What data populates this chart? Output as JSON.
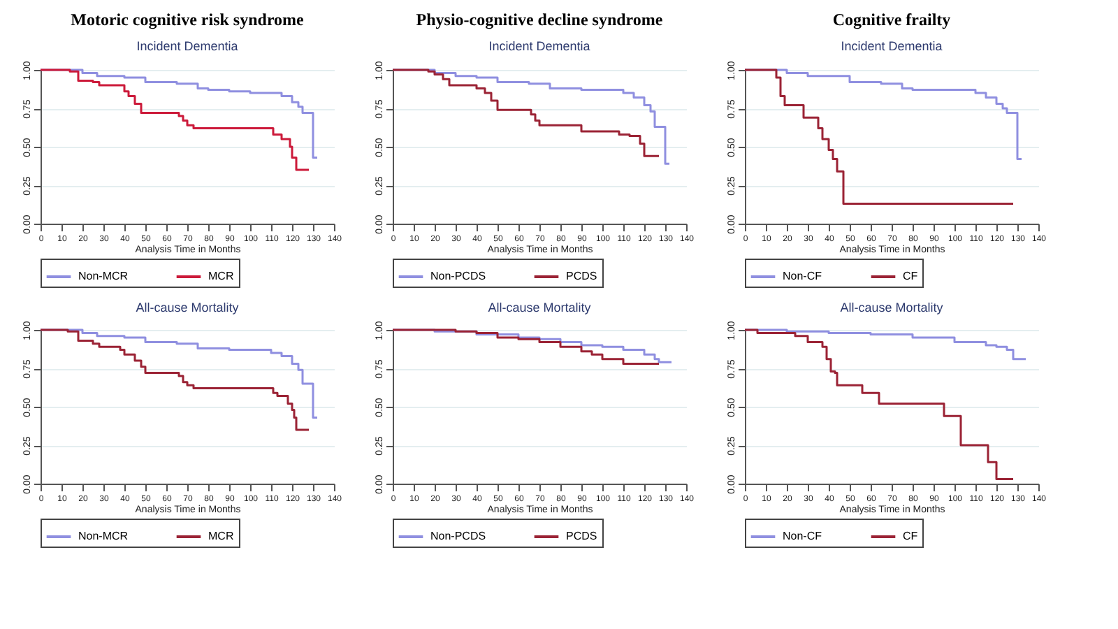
{
  "chart_data": [
    {
      "type": "step",
      "title": "Motoric cognitive risk syndrome",
      "subtitle": "Incident Dementia",
      "xlabel": "Analysis Time in Months",
      "xlim": [
        0,
        140
      ],
      "xticks": [
        0,
        10,
        20,
        30,
        40,
        50,
        60,
        70,
        80,
        90,
        100,
        110,
        120,
        130,
        140
      ],
      "ylim": [
        0,
        1
      ],
      "yticks": [
        {
          "value": 0,
          "label": "0.00"
        },
        {
          "value": 0.25,
          "label": "0.25"
        },
        {
          "value": 0.5,
          "label": "0.50"
        },
        {
          "value": 0.75,
          "label": "0.75"
        },
        {
          "value": 1,
          "label": "1.00"
        }
      ],
      "grid": "y",
      "legend": "bottom",
      "series": [
        {
          "name": "Non-MCR",
          "color": "#8f8fe0",
          "x": [
            0,
            15,
            20,
            27,
            40,
            50,
            65,
            75,
            80,
            90,
            100,
            110,
            115,
            120,
            123,
            125,
            130,
            132
          ],
          "values": [
            1.0,
            1.0,
            0.98,
            0.96,
            0.95,
            0.92,
            0.91,
            0.88,
            0.87,
            0.86,
            0.85,
            0.85,
            0.83,
            0.79,
            0.76,
            0.72,
            0.43,
            0.43
          ]
        },
        {
          "name": "MCR",
          "color": "#cc1a3a",
          "x": [
            0,
            14,
            18,
            25,
            28,
            40,
            42,
            45,
            48,
            66,
            68,
            70,
            73,
            111,
            115,
            119,
            120,
            122,
            128
          ],
          "values": [
            1.0,
            0.99,
            0.93,
            0.92,
            0.9,
            0.86,
            0.83,
            0.78,
            0.72,
            0.7,
            0.67,
            0.64,
            0.62,
            0.58,
            0.55,
            0.5,
            0.43,
            0.35,
            0.35
          ]
        }
      ]
    },
    {
      "type": "step",
      "title": "Physio-cognitive decline syndrome",
      "subtitle": "Incident Dementia",
      "xlabel": "Analysis Time in Months",
      "xlim": [
        0,
        140
      ],
      "xticks": [
        0,
        10,
        20,
        30,
        40,
        50,
        60,
        70,
        80,
        90,
        100,
        110,
        120,
        130,
        140
      ],
      "ylim": [
        0,
        1
      ],
      "yticks": [
        {
          "value": 0,
          "label": "0.00"
        },
        {
          "value": 0.25,
          "label": "0.25"
        },
        {
          "value": 0.5,
          "label": "0.50"
        },
        {
          "value": 0.75,
          "label": "0.75"
        },
        {
          "value": 1,
          "label": "1.00"
        }
      ],
      "grid": "y",
      "legend": "bottom",
      "series": [
        {
          "name": "Non-PCDS",
          "color": "#8f8fe0",
          "x": [
            0,
            15,
            20,
            30,
            40,
            50,
            65,
            75,
            90,
            110,
            115,
            120,
            123,
            125,
            130,
            132
          ],
          "values": [
            1.0,
            1.0,
            0.98,
            0.96,
            0.95,
            0.92,
            0.91,
            0.88,
            0.87,
            0.85,
            0.82,
            0.77,
            0.73,
            0.63,
            0.39,
            0.39
          ]
        },
        {
          "name": "PCDS",
          "color": "#9b2335",
          "x": [
            0,
            17,
            20,
            24,
            27,
            40,
            44,
            47,
            50,
            66,
            68,
            70,
            90,
            108,
            113,
            118,
            120,
            127
          ],
          "values": [
            1.0,
            0.99,
            0.97,
            0.94,
            0.9,
            0.88,
            0.85,
            0.8,
            0.74,
            0.71,
            0.67,
            0.64,
            0.6,
            0.58,
            0.57,
            0.52,
            0.44,
            0.44
          ]
        }
      ]
    },
    {
      "type": "step",
      "title": "Cognitive frailty",
      "subtitle": "Incident Dementia",
      "xlabel": "Analysis Time in Months",
      "xlim": [
        0,
        140
      ],
      "xticks": [
        0,
        10,
        20,
        30,
        40,
        50,
        60,
        70,
        80,
        90,
        100,
        110,
        120,
        130,
        140
      ],
      "ylim": [
        0,
        1
      ],
      "yticks": [
        {
          "value": 0,
          "label": "0.00"
        },
        {
          "value": 0.25,
          "label": "0.25"
        },
        {
          "value": 0.5,
          "label": "0.50"
        },
        {
          "value": 0.75,
          "label": "0.75"
        },
        {
          "value": 1,
          "label": "1.00"
        }
      ],
      "grid": "y",
      "legend": "bottom",
      "series": [
        {
          "name": "Non-CF",
          "color": "#8f8fe0",
          "x": [
            0,
            15,
            20,
            30,
            40,
            50,
            65,
            75,
            80,
            110,
            115,
            120,
            123,
            125,
            130,
            132
          ],
          "values": [
            1.0,
            1.0,
            0.98,
            0.96,
            0.96,
            0.92,
            0.91,
            0.88,
            0.87,
            0.85,
            0.82,
            0.78,
            0.75,
            0.72,
            0.42,
            0.42
          ]
        },
        {
          "name": "CF",
          "color": "#9b2335",
          "x": [
            0,
            15,
            17,
            19,
            28,
            35,
            37,
            40,
            42,
            44,
            47,
            128
          ],
          "values": [
            1.0,
            0.95,
            0.83,
            0.77,
            0.69,
            0.62,
            0.55,
            0.48,
            0.42,
            0.34,
            0.13,
            0.13
          ]
        }
      ]
    },
    {
      "type": "step",
      "title": "All-cause Mortality",
      "xlabel": "Analysis Time in Months",
      "xlim": [
        0,
        140
      ],
      "xticks": [
        0,
        10,
        20,
        30,
        40,
        50,
        60,
        70,
        80,
        90,
        100,
        110,
        120,
        130,
        140
      ],
      "ylim": [
        0,
        1
      ],
      "yticks": [
        {
          "value": 0,
          "label": "0.00"
        },
        {
          "value": 0.25,
          "label": "0.25"
        },
        {
          "value": 0.5,
          "label": "0.50"
        },
        {
          "value": 0.75,
          "label": "0.75"
        },
        {
          "value": 1,
          "label": "1.00"
        }
      ],
      "grid": "y",
      "legend": "bottom",
      "series": [
        {
          "name": "Non-MCR",
          "color": "#8f8fe0",
          "x": [
            0,
            15,
            20,
            27,
            40,
            50,
            65,
            75,
            90,
            110,
            115,
            120,
            123,
            125,
            130,
            132
          ],
          "values": [
            1.0,
            1.0,
            0.98,
            0.96,
            0.95,
            0.92,
            0.91,
            0.88,
            0.87,
            0.85,
            0.83,
            0.78,
            0.74,
            0.65,
            0.43,
            0.43
          ]
        },
        {
          "name": "MCR",
          "color": "#9b2335",
          "x": [
            0,
            13,
            18,
            25,
            28,
            38,
            40,
            45,
            48,
            50,
            66,
            68,
            70,
            73,
            111,
            113,
            118,
            120,
            121,
            122,
            128
          ],
          "values": [
            1.0,
            0.99,
            0.93,
            0.91,
            0.89,
            0.87,
            0.84,
            0.8,
            0.76,
            0.72,
            0.7,
            0.66,
            0.64,
            0.62,
            0.59,
            0.57,
            0.52,
            0.48,
            0.43,
            0.35,
            0.35
          ]
        }
      ]
    },
    {
      "type": "step",
      "title": "All-cause Mortality",
      "xlabel": "Analysis Time in Months",
      "xlim": [
        0,
        140
      ],
      "xticks": [
        0,
        10,
        20,
        30,
        40,
        50,
        60,
        70,
        80,
        90,
        100,
        110,
        120,
        130,
        140
      ],
      "ylim": [
        0,
        1
      ],
      "yticks": [
        {
          "value": 0,
          "label": "0.00"
        },
        {
          "value": 0.25,
          "label": "0.25"
        },
        {
          "value": 0.5,
          "label": "0.50"
        },
        {
          "value": 0.75,
          "label": "0.75"
        },
        {
          "value": 1,
          "label": "1.00"
        }
      ],
      "grid": "y",
      "legend": "bottom",
      "series": [
        {
          "name": "Non-PCDS",
          "color": "#8f8fe0",
          "x": [
            0,
            20,
            40,
            60,
            70,
            80,
            90,
            100,
            110,
            120,
            125,
            127,
            133
          ],
          "values": [
            1.0,
            0.99,
            0.97,
            0.95,
            0.94,
            0.92,
            0.9,
            0.89,
            0.87,
            0.84,
            0.81,
            0.79,
            0.79
          ]
        },
        {
          "name": "PCDS",
          "color": "#9b2335",
          "x": [
            0,
            30,
            40,
            50,
            60,
            70,
            80,
            90,
            95,
            100,
            110,
            127
          ],
          "values": [
            1.0,
            0.99,
            0.98,
            0.95,
            0.94,
            0.92,
            0.89,
            0.86,
            0.84,
            0.81,
            0.78,
            0.78
          ]
        }
      ]
    },
    {
      "type": "step",
      "title": "All-cause Mortality",
      "xlabel": "Analysis Time in Months",
      "xlim": [
        0,
        140
      ],
      "xticks": [
        0,
        10,
        20,
        30,
        40,
        50,
        60,
        70,
        80,
        90,
        100,
        110,
        120,
        130,
        140
      ],
      "ylim": [
        0,
        1
      ],
      "yticks": [
        {
          "value": 0,
          "label": "0.00"
        },
        {
          "value": 0.25,
          "label": "0.25"
        },
        {
          "value": 0.5,
          "label": "0.50"
        },
        {
          "value": 0.75,
          "label": "0.75"
        },
        {
          "value": 1,
          "label": "1.00"
        }
      ],
      "grid": "y",
      "legend": "bottom",
      "series": [
        {
          "name": "Non-CF",
          "color": "#8f8fe0",
          "x": [
            0,
            20,
            40,
            60,
            80,
            100,
            115,
            120,
            125,
            128,
            134
          ],
          "values": [
            1.0,
            0.99,
            0.98,
            0.97,
            0.95,
            0.92,
            0.9,
            0.89,
            0.87,
            0.81,
            0.81
          ]
        },
        {
          "name": "CF",
          "color": "#9b2335",
          "x": [
            0,
            6,
            24,
            30,
            37,
            39,
            41,
            43,
            44,
            56,
            64,
            95,
            103,
            116,
            120,
            128
          ],
          "values": [
            1.0,
            0.98,
            0.96,
            0.92,
            0.89,
            0.81,
            0.73,
            0.72,
            0.64,
            0.59,
            0.52,
            0.44,
            0.25,
            0.14,
            0.03,
            0.03
          ]
        }
      ]
    }
  ]
}
